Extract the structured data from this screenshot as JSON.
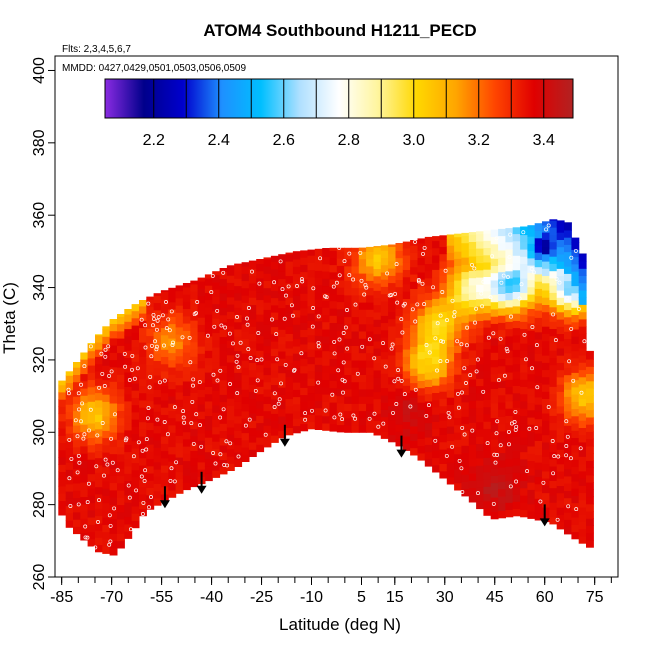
{
  "chart_data": {
    "type": "heatmap",
    "title": "ATOM4 Southbound H1211_PECD",
    "flights_label": "Flts: 2,3,4,5,6,7",
    "dates_label": "MMDD: 0427,0429,0501,0503,0506,0509",
    "xlabel": "Latitude (deg N)",
    "ylabel": "Theta (C)",
    "xlim": [
      -87,
      82
    ],
    "ylim": [
      260,
      404
    ],
    "x_ticks": [
      -85,
      -70,
      -55,
      -40,
      -25,
      -10,
      5,
      15,
      30,
      45,
      60,
      75
    ],
    "x_tick_labels": [
      "-85",
      "-70",
      "-55",
      "-40",
      "-25",
      "-10",
      "5",
      "15",
      "30",
      "45",
      "60",
      "75"
    ],
    "y_ticks": [
      260,
      280,
      300,
      320,
      340,
      360,
      380,
      400
    ],
    "y_tick_labels": [
      "260",
      "280",
      "300",
      "320",
      "340",
      "360",
      "380",
      "400"
    ],
    "colorbar": {
      "range": [
        2.05,
        3.49
      ],
      "ticks": [
        2.2,
        2.4,
        2.6,
        2.8,
        3.0,
        3.2,
        3.4
      ],
      "tick_labels": [
        "2.2",
        "2.4",
        "2.6",
        "2.8",
        "3.0",
        "3.2",
        "3.4"
      ],
      "colors": [
        "#8a2be2",
        "#00008b",
        "#0000cd",
        "#1e90ff",
        "#00bfff",
        "#b0e0ff",
        "#ffffff",
        "#fff59d",
        "#ffd700",
        "#ffa500",
        "#ff4500",
        "#e00000",
        "#b22222"
      ]
    },
    "top_boundary": [
      [
        -86,
        313
      ],
      [
        -80,
        320
      ],
      [
        -75,
        326
      ],
      [
        -70,
        331
      ],
      [
        -62,
        336
      ],
      [
        -55,
        339
      ],
      [
        -45,
        342
      ],
      [
        -35,
        346
      ],
      [
        -25,
        348
      ],
      [
        -15,
        350
      ],
      [
        -5,
        351
      ],
      [
        5,
        351
      ],
      [
        15,
        352
      ],
      [
        25,
        354
      ],
      [
        35,
        355
      ],
      [
        45,
        356
      ],
      [
        55,
        357
      ],
      [
        63,
        359
      ],
      [
        67,
        358
      ],
      [
        72,
        348
      ],
      [
        73,
        330
      ],
      [
        74,
        315
      ],
      [
        74,
        300
      ]
    ],
    "bottom_boundary": [
      [
        74,
        268
      ],
      [
        70,
        270
      ],
      [
        62,
        275
      ],
      [
        52,
        277
      ],
      [
        44,
        276
      ],
      [
        38,
        281
      ],
      [
        30,
        287
      ],
      [
        22,
        293
      ],
      [
        15,
        297
      ],
      [
        8,
        300
      ],
      [
        0,
        300
      ],
      [
        -10,
        301
      ],
      [
        -18,
        299
      ],
      [
        -25,
        295
      ],
      [
        -33,
        290
      ],
      [
        -40,
        287
      ],
      [
        -48,
        284
      ],
      [
        -54,
        281
      ],
      [
        -60,
        278
      ],
      [
        -64,
        272
      ],
      [
        -69,
        266
      ],
      [
        -74,
        267
      ],
      [
        -78,
        270
      ],
      [
        -83,
        274
      ],
      [
        -86,
        279
      ]
    ],
    "field_features": [
      {
        "lat": -75,
        "theta": 305,
        "value": 3.05
      },
      {
        "lat": -52,
        "theta": 325,
        "value": 3.15
      },
      {
        "lat": 10,
        "theta": 348,
        "value": 3.05
      },
      {
        "lat": 28,
        "theta": 330,
        "value": 3.0
      },
      {
        "lat": 38,
        "theta": 340,
        "value": 2.85
      },
      {
        "lat": 50,
        "theta": 341,
        "value": 2.55
      },
      {
        "lat": 60,
        "theta": 352,
        "value": 2.2
      },
      {
        "lat": 68,
        "theta": 340,
        "value": 2.6
      },
      {
        "lat": 72,
        "theta": 310,
        "value": 3.05
      },
      {
        "lat": 25,
        "theta": 319,
        "value": 3.0
      },
      {
        "lat": 20,
        "theta": 307,
        "value": 3.43
      },
      {
        "lat": 45,
        "theta": 285,
        "value": 3.45
      }
    ],
    "arrows_latitude": [
      -54,
      -43,
      -18,
      17,
      60
    ],
    "arrow_bases_theta": [
      279,
      283,
      296,
      293,
      274
    ]
  }
}
